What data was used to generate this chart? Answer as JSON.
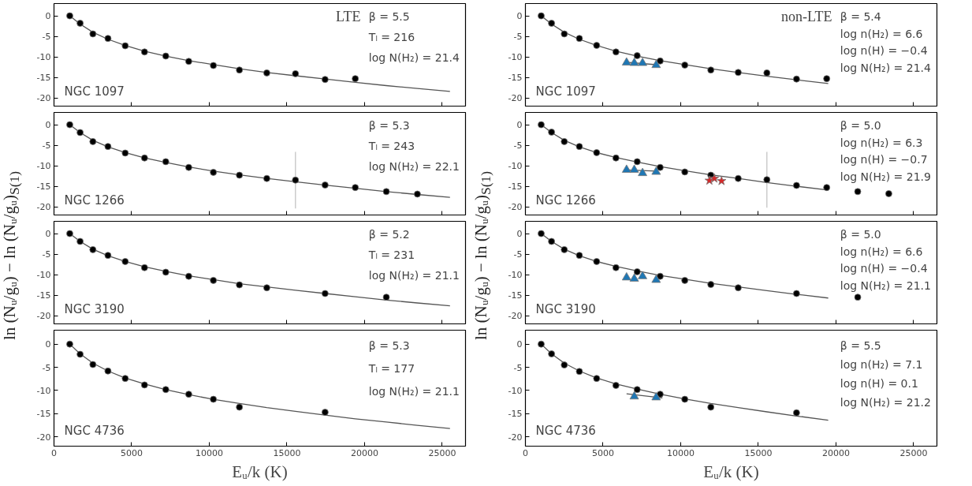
{
  "chart_data": [
    {
      "type": "scatter",
      "title": "NGC 1097",
      "subtitle": "LTE",
      "ylabel": "ln (Nᵤ/gᵤ) − ln (Nᵤ/gᵤ)$_{S(1)}$",
      "annotations": [
        "β = 5.5",
        "Tₗ = 216",
        "log N(H₂) = 21.4"
      ],
      "xlim": [
        0,
        26500
      ],
      "ylim": [
        -22,
        3
      ],
      "xticks": [
        0,
        5000,
        10000,
        15000,
        20000,
        25000
      ],
      "yticks": [
        -20,
        -15,
        -10,
        -5,
        0
      ],
      "tick_labels": "y",
      "series": [
        {
          "type": "line",
          "color": "#555555",
          "x": [
            1015,
            1682,
            2504,
            3474,
            4586,
            5829,
            7197,
            8677,
            10263,
            11940,
            13703,
            15549,
            17458,
            19402,
            21400,
            23400,
            25500
          ],
          "values": [
            0,
            -2.0,
            -4.0,
            -5.7,
            -7.2,
            -8.6,
            -9.8,
            -10.9,
            -11.9,
            -12.9,
            -13.8,
            -14.6,
            -15.4,
            -16.2,
            -17.0,
            -17.7,
            -18.4
          ]
        },
        {
          "type": "scatter",
          "marker": "circle",
          "color": "#000000",
          "x": [
            1015,
            1682,
            2504,
            3474,
            4586,
            5829,
            7197,
            8677,
            10263,
            11940,
            13703,
            15549,
            17458,
            19402
          ],
          "values": [
            0,
            -1.8,
            -4.4,
            -5.5,
            -7.3,
            -8.8,
            -9.8,
            -11.1,
            -12.1,
            -13.2,
            -13.9,
            -14.1,
            -15.5,
            -15.3
          ]
        }
      ]
    },
    {
      "type": "scatter",
      "title": "NGC 1097",
      "subtitle": "non-LTE",
      "ylabel": "ln (Nᵤ/gᵤ) − ln (Nᵤ/gᵤ)$_{S(1)}$",
      "annotations": [
        "β = 5.4",
        "log n(H₂) = 6.6",
        "log n(H) = −0.4",
        "log N(H₂) = 21.4"
      ],
      "xlim": [
        0,
        26500
      ],
      "ylim": [
        -22,
        3
      ],
      "xticks": [
        0,
        5000,
        10000,
        15000,
        20000,
        25000
      ],
      "yticks": [
        -20,
        -15,
        -10,
        -5,
        0
      ],
      "tick_labels": "y",
      "series": [
        {
          "type": "line",
          "color": "#555555",
          "x": [
            1015,
            1682,
            2504,
            3474,
            4586,
            5829,
            7197,
            8677,
            10263,
            11940,
            13703,
            15549,
            17458,
            19500
          ],
          "values": [
            0,
            -2.0,
            -4.0,
            -5.7,
            -7.2,
            -8.6,
            -9.8,
            -10.9,
            -11.9,
            -12.9,
            -13.8,
            -14.7,
            -15.6,
            -16.5
          ]
        },
        {
          "type": "line",
          "color": "#555555",
          "x": [
            6514,
            8419
          ],
          "values": [
            -11.3,
            -11.9
          ]
        },
        {
          "type": "scatter",
          "marker": "circle",
          "color": "#000000",
          "x": [
            1015,
            1682,
            2504,
            3474,
            4586,
            5829,
            7197,
            8677,
            10263,
            11940,
            13703,
            15549,
            17458,
            19402
          ],
          "values": [
            0,
            -1.8,
            -4.4,
            -5.5,
            -7.2,
            -8.8,
            -9.7,
            -11.0,
            -12.0,
            -13.2,
            -13.8,
            -13.9,
            -15.4,
            -15.3
          ]
        },
        {
          "type": "scatter",
          "marker": "triangle",
          "color": "#1f77b4",
          "x": [
            6514,
            7010,
            7543,
            8419
          ],
          "values": [
            -11.4,
            -11.5,
            -11.5,
            -12.0
          ]
        }
      ]
    },
    {
      "type": "scatter",
      "title": "NGC 1266",
      "annotations": [
        "β = 5.3",
        "Tₗ = 243",
        "log N(H₂) = 22.1"
      ],
      "xlim": [
        0,
        26500
      ],
      "ylim": [
        -22,
        3
      ],
      "xticks": [
        0,
        5000,
        10000,
        15000,
        20000,
        25000
      ],
      "yticks": [
        -20,
        -15,
        -10,
        -5,
        0
      ],
      "tick_labels": "y",
      "series": [
        {
          "type": "line",
          "color": "#555555",
          "x": [
            1015,
            1682,
            2504,
            3474,
            4586,
            5829,
            7197,
            8677,
            10263,
            11940,
            13703,
            15549,
            17458,
            19402,
            21400,
            23400,
            25500
          ],
          "values": [
            0,
            -1.9,
            -3.8,
            -5.4,
            -6.8,
            -8.1,
            -9.2,
            -10.3,
            -11.3,
            -12.2,
            -13.1,
            -13.9,
            -14.7,
            -15.5,
            -16.3,
            -17.0,
            -17.7
          ]
        },
        {
          "type": "scatter",
          "marker": "circle",
          "color": "#000000",
          "x": [
            1015,
            1682,
            2504,
            3474,
            4586,
            5829,
            7197,
            8677,
            10263,
            11940,
            13703,
            15549,
            17458,
            19402,
            21400,
            23400
          ],
          "values": [
            0,
            -1.9,
            -4.1,
            -5.3,
            -6.9,
            -8.1,
            -9.0,
            -10.4,
            -11.6,
            -12.3,
            -13.1,
            -13.5,
            -14.7,
            -15.3,
            -16.3,
            -16.9
          ],
          "errors": [
            null,
            null,
            null,
            null,
            null,
            null,
            null,
            null,
            null,
            null,
            null,
            6.9,
            null,
            null,
            null,
            null
          ]
        }
      ]
    },
    {
      "type": "scatter",
      "title": "NGC 1266",
      "annotations": [
        "β = 5.0",
        "log n(H₂) = 6.3",
        "log n(H) = −0.7",
        "log N(H₂) = 21.9"
      ],
      "xlim": [
        0,
        26500
      ],
      "ylim": [
        -22,
        3
      ],
      "xticks": [
        0,
        5000,
        10000,
        15000,
        20000,
        25000
      ],
      "yticks": [
        -20,
        -15,
        -10,
        -5,
        0
      ],
      "tick_labels": "y",
      "series": [
        {
          "type": "line",
          "color": "#555555",
          "x": [
            1015,
            1682,
            2504,
            3474,
            4586,
            5829,
            7197,
            8677,
            10263,
            11940,
            13703,
            15549,
            17458,
            19500
          ],
          "values": [
            0,
            -1.9,
            -3.8,
            -5.4,
            -6.8,
            -8.0,
            -9.1,
            -10.2,
            -11.2,
            -12.2,
            -13.1,
            -14.1,
            -15.0,
            -15.9
          ]
        },
        {
          "type": "line",
          "color": "#555555",
          "x": [
            6514,
            8419
          ],
          "values": [
            -11.0,
            -11.3
          ]
        },
        {
          "type": "scatter",
          "marker": "circle",
          "color": "#000000",
          "x": [
            1015,
            1682,
            2504,
            3474,
            4586,
            5829,
            7197,
            8677,
            10263,
            11940,
            13703,
            15549,
            17458,
            19402,
            21400,
            23400
          ],
          "values": [
            0,
            -1.8,
            -4.1,
            -5.3,
            -6.8,
            -8.1,
            -9.0,
            -10.4,
            -11.5,
            -12.3,
            -13.1,
            -13.4,
            -14.8,
            -15.3,
            -16.3,
            -16.8
          ],
          "errors": [
            null,
            null,
            null,
            null,
            null,
            null,
            null,
            null,
            null,
            null,
            null,
            6.8,
            null,
            null,
            null,
            null
          ]
        },
        {
          "type": "scatter",
          "marker": "triangle",
          "color": "#1f77b4",
          "x": [
            6514,
            7010,
            7543,
            8419
          ],
          "values": [
            -11.0,
            -11.0,
            -11.8,
            -11.5
          ]
        },
        {
          "type": "scatter",
          "marker": "star",
          "color": "#d62728",
          "x": [
            11850,
            12170,
            12630
          ],
          "values": [
            -13.6,
            -13.1,
            -13.7
          ]
        }
      ]
    },
    {
      "type": "scatter",
      "title": "NGC 3190",
      "annotations": [
        "β = 5.2",
        "Tₗ = 231",
        "log N(H₂) = 21.1"
      ],
      "xlim": [
        0,
        26500
      ],
      "ylim": [
        -22,
        3
      ],
      "xticks": [
        0,
        5000,
        10000,
        15000,
        20000,
        25000
      ],
      "yticks": [
        -20,
        -15,
        -10,
        -5,
        0
      ],
      "tick_labels": "y",
      "series": [
        {
          "type": "line",
          "color": "#555555",
          "x": [
            1015,
            1682,
            2504,
            3474,
            4586,
            5829,
            7197,
            8677,
            10263,
            11940,
            13703,
            15549,
            17458,
            19402,
            21400,
            23400,
            25500
          ],
          "values": [
            0,
            -1.9,
            -3.8,
            -5.4,
            -6.8,
            -8.1,
            -9.2,
            -10.3,
            -11.2,
            -12.2,
            -13.0,
            -13.8,
            -14.6,
            -15.4,
            -16.2,
            -16.9,
            -17.6
          ]
        },
        {
          "type": "scatter",
          "marker": "circle",
          "color": "#000000",
          "x": [
            1015,
            1682,
            2504,
            3474,
            4586,
            5829,
            7197,
            8677,
            10263,
            11940,
            13703,
            17458,
            21400
          ],
          "values": [
            0,
            -1.9,
            -3.9,
            -5.3,
            -6.8,
            -8.3,
            -9.4,
            -10.4,
            -11.4,
            -12.5,
            -13.2,
            -14.6,
            -15.5
          ]
        }
      ]
    },
    {
      "type": "scatter",
      "title": "NGC 3190",
      "annotations": [
        "β = 5.0",
        "log n(H₂) = 6.6",
        "log n(H) = −0.4",
        "log N(H₂) = 21.1"
      ],
      "xlim": [
        0,
        26500
      ],
      "ylim": [
        -22,
        3
      ],
      "xticks": [
        0,
        5000,
        10000,
        15000,
        20000,
        25000
      ],
      "yticks": [
        -20,
        -15,
        -10,
        -5,
        0
      ],
      "tick_labels": "y",
      "series": [
        {
          "type": "line",
          "color": "#555555",
          "x": [
            1015,
            1682,
            2504,
            3474,
            4586,
            5829,
            7197,
            8677,
            10263,
            11940,
            13703,
            15549,
            17458,
            19500
          ],
          "values": [
            0,
            -1.9,
            -3.8,
            -5.4,
            -6.8,
            -8.0,
            -9.1,
            -10.2,
            -11.1,
            -12.1,
            -13.0,
            -13.9,
            -14.8,
            -15.7
          ]
        },
        {
          "type": "scatter",
          "marker": "circle",
          "color": "#000000",
          "x": [
            1015,
            1682,
            2504,
            3474,
            4586,
            5829,
            7197,
            8677,
            10263,
            11940,
            13703,
            17458,
            21400
          ],
          "values": [
            0,
            -1.9,
            -3.9,
            -5.3,
            -6.8,
            -8.3,
            -9.3,
            -10.4,
            -11.4,
            -12.4,
            -13.2,
            -14.6,
            -15.5
          ]
        },
        {
          "type": "scatter",
          "marker": "triangle",
          "color": "#1f77b4",
          "x": [
            6514,
            7010,
            7543,
            8419
          ],
          "values": [
            -10.7,
            -11.0,
            -10.4,
            -11.3
          ]
        }
      ]
    },
    {
      "type": "scatter",
      "title": "NGC 4736",
      "annotations": [
        "β = 5.3",
        "Tₗ = 177",
        "log N(H₂) = 21.1"
      ],
      "xlabel": "Eᵤ/k (K)",
      "xlim": [
        0,
        26500
      ],
      "ylim": [
        -22,
        3
      ],
      "xticks": [
        0,
        5000,
        10000,
        15000,
        20000,
        25000
      ],
      "yticks": [
        -20,
        -15,
        -10,
        -5,
        0
      ],
      "series": [
        {
          "type": "line",
          "color": "#555555",
          "x": [
            1015,
            1682,
            2504,
            3474,
            4586,
            5829,
            7197,
            8677,
            10263,
            11940,
            13703,
            15549,
            17458,
            19402,
            21400,
            23400,
            25500
          ],
          "values": [
            0,
            -2.1,
            -4.1,
            -5.8,
            -7.3,
            -8.6,
            -9.8,
            -10.9,
            -11.9,
            -12.8,
            -13.7,
            -14.5,
            -15.3,
            -16.1,
            -16.8,
            -17.5,
            -18.2
          ]
        },
        {
          "type": "scatter",
          "marker": "circle",
          "color": "#000000",
          "x": [
            1015,
            1682,
            2504,
            3474,
            4586,
            5829,
            7197,
            8677,
            10263,
            11940,
            17458
          ],
          "values": [
            0,
            -2.2,
            -4.4,
            -5.8,
            -7.4,
            -8.8,
            -9.8,
            -10.8,
            -11.9,
            -13.6,
            -14.7
          ]
        }
      ]
    },
    {
      "type": "scatter",
      "title": "NGC 4736",
      "annotations": [
        "β = 5.5",
        "log n(H₂) = 7.1",
        "log n(H) = 0.1",
        "log N(H₂) = 21.2"
      ],
      "xlabel": "Eᵤ/k (K)",
      "xlim": [
        0,
        26500
      ],
      "ylim": [
        -22,
        3
      ],
      "xticks": [
        0,
        5000,
        10000,
        15000,
        20000,
        25000
      ],
      "yticks": [
        -20,
        -15,
        -10,
        -5,
        0
      ],
      "series": [
        {
          "type": "line",
          "color": "#555555",
          "x": [
            1015,
            1682,
            2504,
            3474,
            4586,
            5829,
            7197,
            8677,
            10263,
            11940,
            13703,
            15549,
            17458,
            19500
          ],
          "values": [
            0,
            -2.1,
            -4.1,
            -5.8,
            -7.3,
            -8.6,
            -9.7,
            -10.8,
            -11.8,
            -12.8,
            -13.7,
            -14.6,
            -15.5,
            -16.4
          ]
        },
        {
          "type": "line",
          "color": "#555555",
          "x": [
            6514,
            8820
          ],
          "values": [
            -10.7,
            -11.6
          ]
        },
        {
          "type": "scatter",
          "marker": "circle",
          "color": "#000000",
          "x": [
            1015,
            1682,
            2504,
            3474,
            4586,
            5829,
            7197,
            8677,
            10263,
            11940,
            17458
          ],
          "values": [
            0,
            -2.1,
            -4.5,
            -5.9,
            -7.4,
            -8.9,
            -9.8,
            -10.8,
            -11.9,
            -13.6,
            -14.8
          ]
        },
        {
          "type": "scatter",
          "marker": "triangle",
          "color": "#1f77b4",
          "x": [
            7010,
            8419
          ],
          "values": [
            -11.3,
            -11.5
          ]
        }
      ]
    }
  ]
}
